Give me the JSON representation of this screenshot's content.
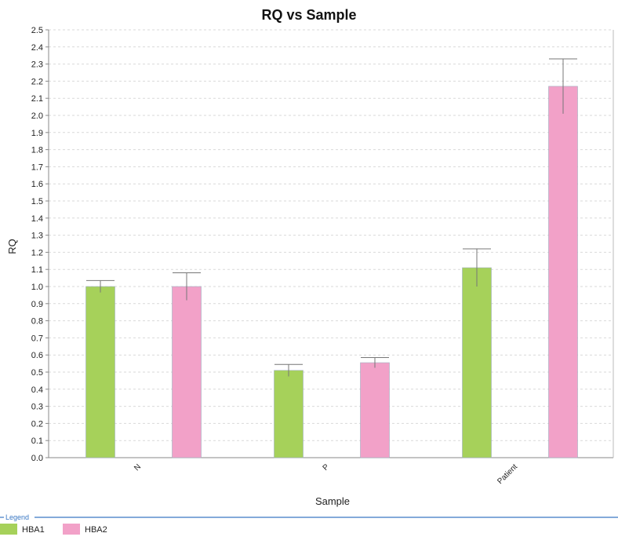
{
  "chart_data": {
    "type": "bar",
    "title": "RQ vs Sample",
    "xlabel": "Sample",
    "ylabel": "RQ",
    "ylim": [
      0,
      2.5
    ],
    "ytick_step": 0.1,
    "grid": true,
    "categories": [
      "N",
      "P",
      "Patient"
    ],
    "series": [
      {
        "name": "HBA1",
        "color": "#a6d15a",
        "values": [
          1.0,
          0.51,
          1.11
        ],
        "error_upper": [
          1.035,
          0.545,
          1.22
        ],
        "error_lower": [
          0.965,
          0.475,
          1.0
        ]
      },
      {
        "name": "HBA2",
        "color": "#f2a1c8",
        "values": [
          1.0,
          0.555,
          2.17
        ],
        "error_upper": [
          1.08,
          0.585,
          2.33
        ],
        "error_lower": [
          0.92,
          0.525,
          2.01
        ]
      }
    ],
    "legend": {
      "title": "Legend",
      "placement": "bottom-left"
    }
  }
}
